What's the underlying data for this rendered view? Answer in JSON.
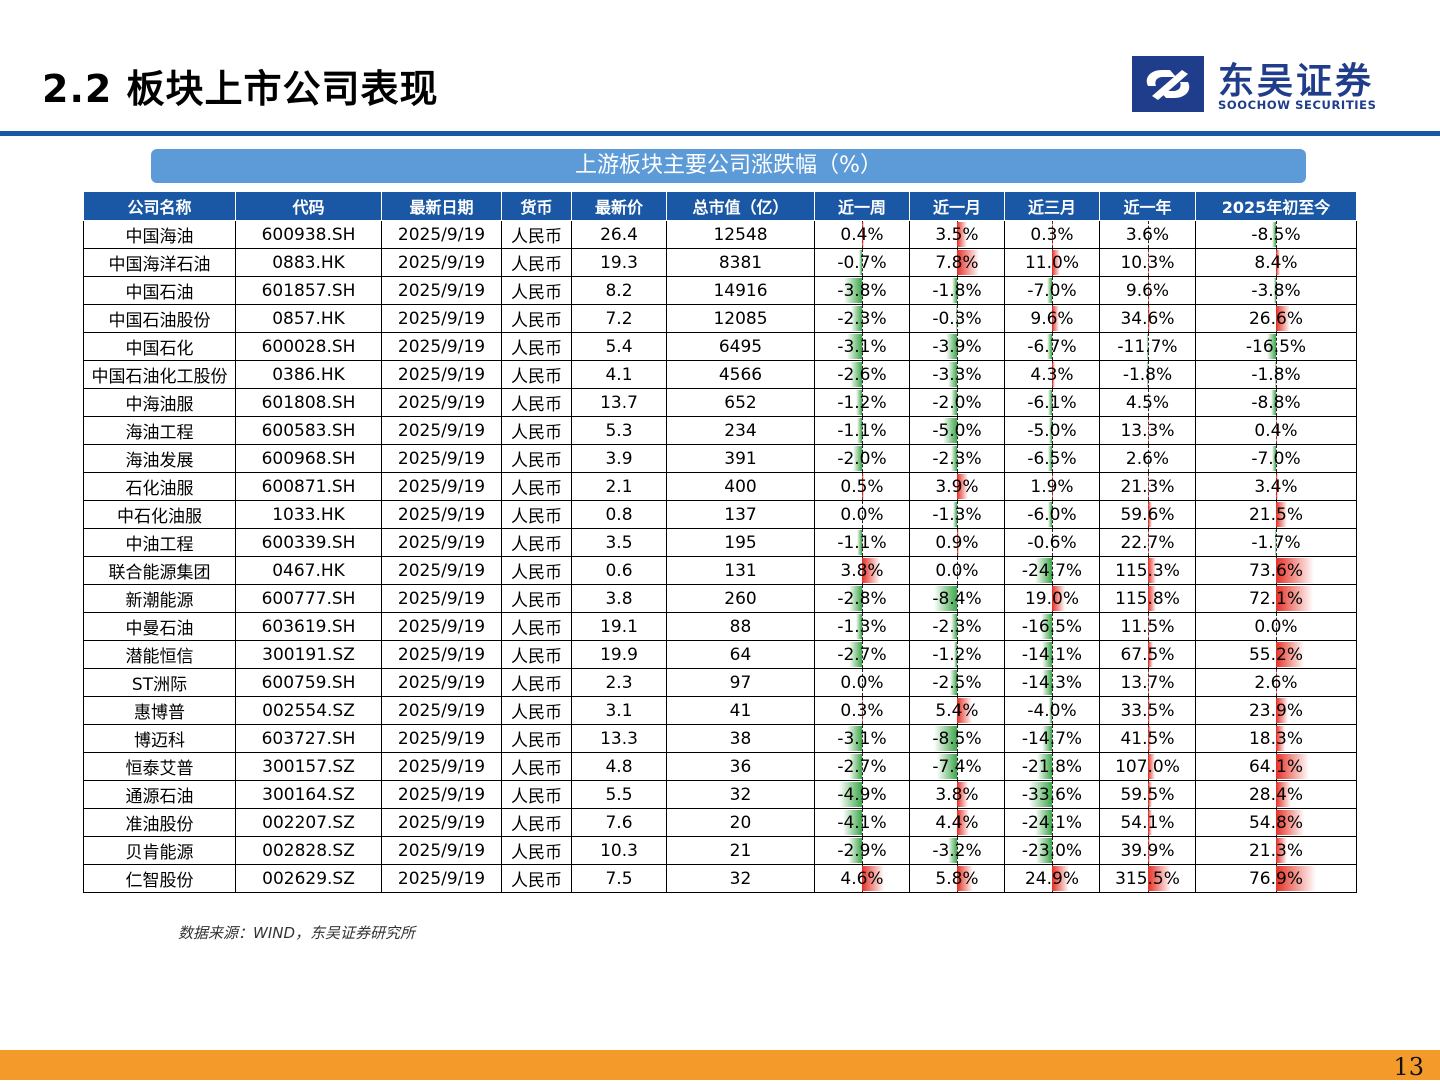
{
  "page": {
    "title": "2.2 板块上市公司表现",
    "table_title": "上游板块主要公司涨跌幅（%）",
    "source_note": "数据来源：WIND，东吴证券研究所",
    "page_number": "13"
  },
  "logo": {
    "name_cn": "东吴证券",
    "name_en": "SOOCHOW SECURITIES",
    "brand_color": "#1f3d8a"
  },
  "colors": {
    "header_blue": "#1a57a4",
    "banner_blue": "#5c9ad8",
    "footer_orange": "#f39a2a",
    "positive_bar": "#e63025",
    "negative_bar": "#3da64a"
  },
  "table": {
    "columns": [
      "公司名称",
      "代码",
      "最新日期",
      "货币",
      "最新价",
      "总市值（亿）",
      "近一周",
      "近一月",
      "近三月",
      "近一年",
      "2025年初至今"
    ],
    "rows": [
      [
        "中国海油",
        "600938.SH",
        "2025/9/19",
        "人民币",
        "26.4",
        "12548",
        "0.4%",
        "3.5%",
        "0.3%",
        "3.6%",
        "-8.5%"
      ],
      [
        "中国海洋石油",
        "0883.HK",
        "2025/9/19",
        "人民币",
        "19.3",
        "8381",
        "-0.7%",
        "7.8%",
        "11.0%",
        "10.3%",
        "8.4%"
      ],
      [
        "中国石油",
        "601857.SH",
        "2025/9/19",
        "人民币",
        "8.2",
        "14916",
        "-3.8%",
        "-1.8%",
        "-7.0%",
        "9.6%",
        "-3.8%"
      ],
      [
        "中国石油股份",
        "0857.HK",
        "2025/9/19",
        "人民币",
        "7.2",
        "12085",
        "-2.3%",
        "-0.3%",
        "9.6%",
        "34.6%",
        "26.6%"
      ],
      [
        "中国石化",
        "600028.SH",
        "2025/9/19",
        "人民币",
        "5.4",
        "6495",
        "-3.1%",
        "-3.9%",
        "-6.7%",
        "-11.7%",
        "-16.5%"
      ],
      [
        "中国石油化工股份",
        "0386.HK",
        "2025/9/19",
        "人民币",
        "4.1",
        "4566",
        "-2.6%",
        "-3.3%",
        "4.3%",
        "-1.8%",
        "-1.8%"
      ],
      [
        "中海油服",
        "601808.SH",
        "2025/9/19",
        "人民币",
        "13.7",
        "652",
        "-1.2%",
        "-2.0%",
        "-6.1%",
        "4.5%",
        "-8.8%"
      ],
      [
        "海油工程",
        "600583.SH",
        "2025/9/19",
        "人民币",
        "5.3",
        "234",
        "-1.1%",
        "-5.0%",
        "-5.0%",
        "13.3%",
        "0.4%"
      ],
      [
        "海油发展",
        "600968.SH",
        "2025/9/19",
        "人民币",
        "3.9",
        "391",
        "-2.0%",
        "-2.3%",
        "-6.5%",
        "2.6%",
        "-7.0%"
      ],
      [
        "石化油服",
        "600871.SH",
        "2025/9/19",
        "人民币",
        "2.1",
        "400",
        "0.5%",
        "3.9%",
        "1.9%",
        "21.3%",
        "3.4%"
      ],
      [
        "中石化油服",
        "1033.HK",
        "2025/9/19",
        "人民币",
        "0.8",
        "137",
        "0.0%",
        "-1.3%",
        "-6.0%",
        "59.6%",
        "21.5%"
      ],
      [
        "中油工程",
        "600339.SH",
        "2025/9/19",
        "人民币",
        "3.5",
        "195",
        "-1.1%",
        "0.9%",
        "-0.6%",
        "22.7%",
        "-1.7%"
      ],
      [
        "联合能源集团",
        "0467.HK",
        "2025/9/19",
        "人民币",
        "0.6",
        "131",
        "3.8%",
        "0.0%",
        "-24.7%",
        "115.3%",
        "73.6%"
      ],
      [
        "新潮能源",
        "600777.SH",
        "2025/9/19",
        "人民币",
        "3.8",
        "260",
        "-2.8%",
        "-8.4%",
        "19.0%",
        "115.8%",
        "72.1%"
      ],
      [
        "中曼石油",
        "603619.SH",
        "2025/9/19",
        "人民币",
        "19.1",
        "88",
        "-1.3%",
        "-2.3%",
        "-16.5%",
        "11.5%",
        "0.0%"
      ],
      [
        "潜能恒信",
        "300191.SZ",
        "2025/9/19",
        "人民币",
        "19.9",
        "64",
        "-2.7%",
        "-1.2%",
        "-14.1%",
        "67.5%",
        "55.2%"
      ],
      [
        "ST洲际",
        "600759.SH",
        "2025/9/19",
        "人民币",
        "2.3",
        "97",
        "0.0%",
        "-2.5%",
        "-14.3%",
        "13.7%",
        "2.6%"
      ],
      [
        "惠博普",
        "002554.SZ",
        "2025/9/19",
        "人民币",
        "3.1",
        "41",
        "0.3%",
        "5.4%",
        "-4.0%",
        "33.5%",
        "23.9%"
      ],
      [
        "博迈科",
        "603727.SH",
        "2025/9/19",
        "人民币",
        "13.3",
        "38",
        "-3.1%",
        "-8.5%",
        "-14.7%",
        "41.5%",
        "18.3%"
      ],
      [
        "恒泰艾普",
        "300157.SZ",
        "2025/9/19",
        "人民币",
        "4.8",
        "36",
        "-2.7%",
        "-7.4%",
        "-21.8%",
        "107.0%",
        "64.1%"
      ],
      [
        "通源石油",
        "300164.SZ",
        "2025/9/19",
        "人民币",
        "5.5",
        "32",
        "-4.9%",
        "3.8%",
        "-33.6%",
        "59.5%",
        "28.4%"
      ],
      [
        "准油股份",
        "002207.SZ",
        "2025/9/19",
        "人民币",
        "7.6",
        "20",
        "-4.1%",
        "4.4%",
        "-24.1%",
        "54.1%",
        "54.8%"
      ],
      [
        "贝肯能源",
        "002828.SZ",
        "2025/9/19",
        "人民币",
        "10.3",
        "21",
        "-2.9%",
        "-3.2%",
        "-23.0%",
        "39.9%",
        "21.3%"
      ],
      [
        "仁智股份",
        "002629.SZ",
        "2025/9/19",
        "人民币",
        "7.5",
        "32",
        "4.6%",
        "5.8%",
        "24.9%",
        "315.5%",
        "76.9%"
      ]
    ]
  }
}
